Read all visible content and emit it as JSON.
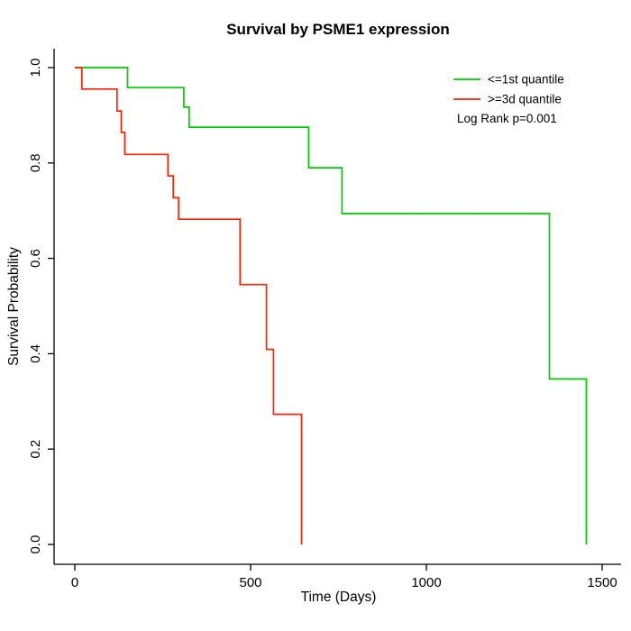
{
  "page": {
    "background": "#ffffff"
  },
  "chart_data": {
    "type": "line",
    "subtype": "kaplan-meier-step-curves",
    "title": "Survival by PSME1 expression",
    "xlabel": "Time (Days)",
    "ylabel": "Survival Probability",
    "xlim": [
      0,
      1500
    ],
    "ylim": [
      0.0,
      1.0
    ],
    "xticks": [
      "0",
      "500",
      "1000",
      "1500"
    ],
    "yticks": [
      "0.0",
      "0.2",
      "0.4",
      "0.6",
      "0.8",
      "1.0"
    ],
    "grid": false,
    "legend_position": "top-right",
    "annotation": "Log Rank p=0.001",
    "axis_color": "#000000",
    "series": [
      {
        "name": "<=1st quantile",
        "color": "#00cc00",
        "points": [
          [
            0,
            1.0
          ],
          [
            150,
            0.958
          ],
          [
            310,
            0.917
          ],
          [
            325,
            0.875
          ],
          [
            665,
            0.79
          ],
          [
            760,
            0.694
          ],
          [
            1350,
            0.347
          ],
          [
            1455,
            0.0
          ]
        ]
      },
      {
        "name": ">=3d quantile",
        "color": "#ff2200",
        "points": [
          [
            0,
            1.0
          ],
          [
            20,
            0.955
          ],
          [
            120,
            0.909
          ],
          [
            132,
            0.864
          ],
          [
            142,
            0.818
          ],
          [
            265,
            0.773
          ],
          [
            280,
            0.727
          ],
          [
            295,
            0.682
          ],
          [
            470,
            0.545
          ],
          [
            545,
            0.409
          ],
          [
            565,
            0.273
          ],
          [
            645,
            0.0
          ]
        ]
      }
    ]
  }
}
